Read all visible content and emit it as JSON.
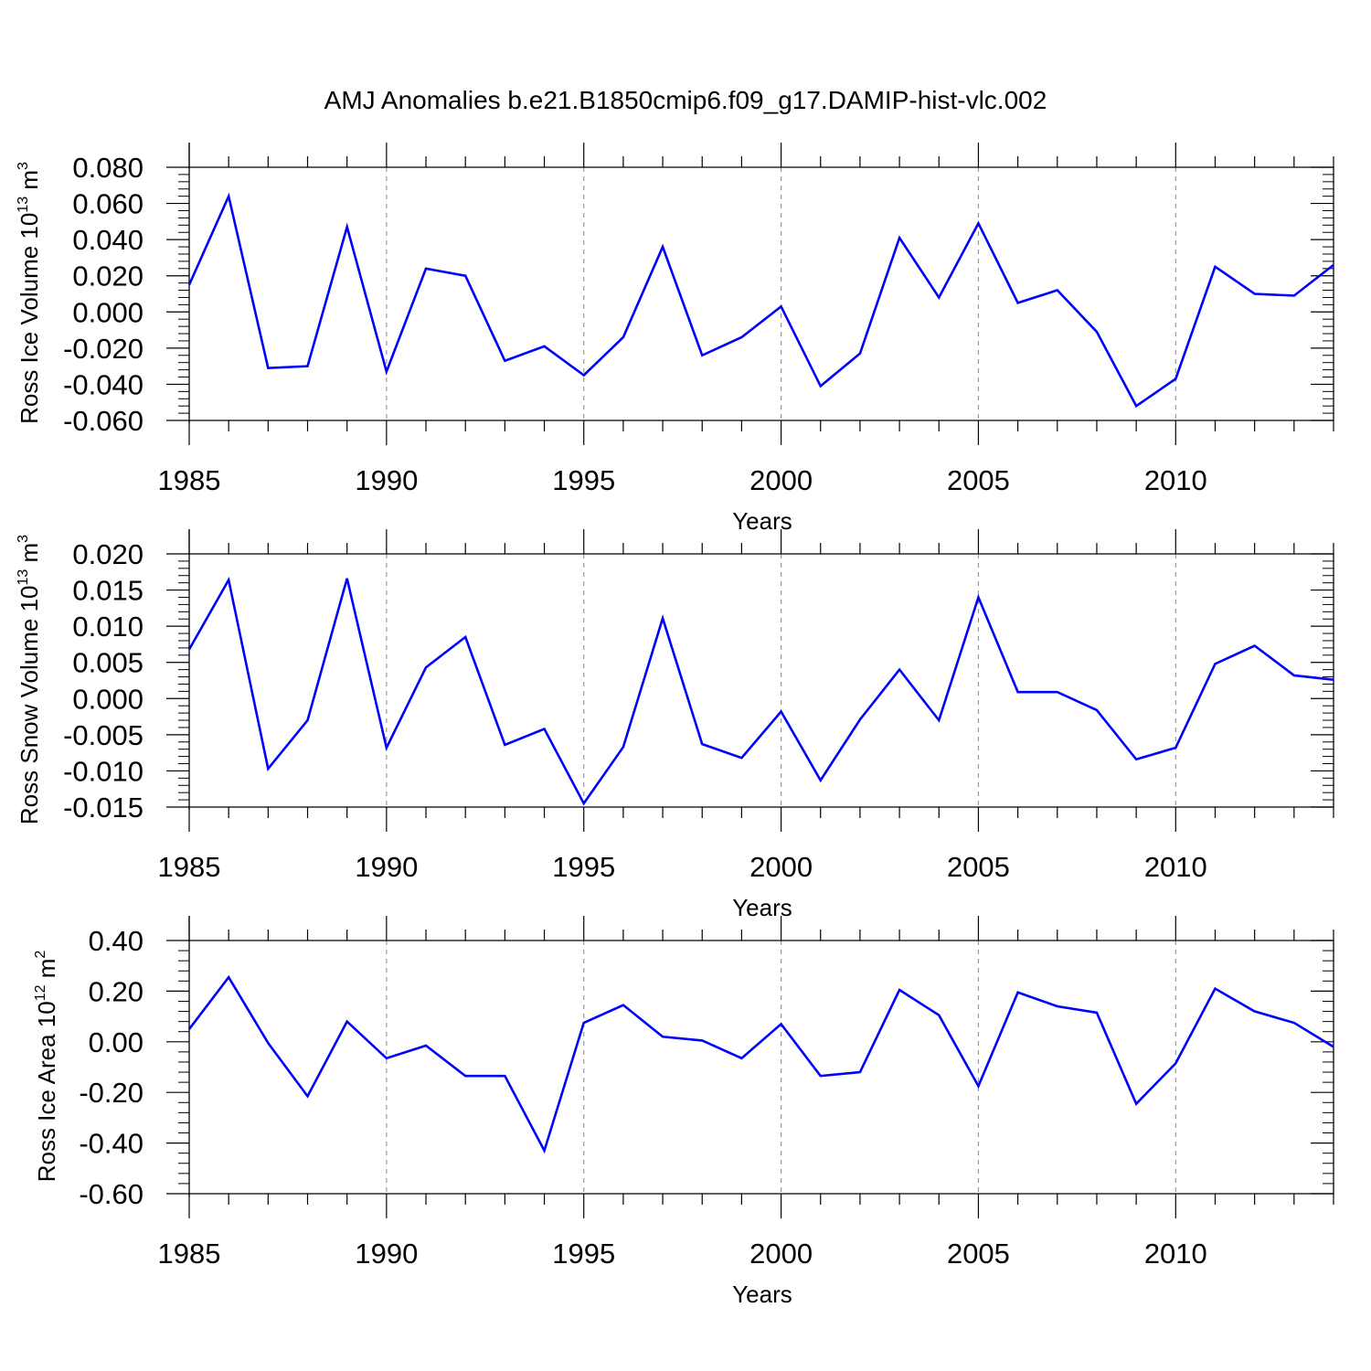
{
  "figure_title": "AMJ Anomalies b.e21.B1850cmip6.f09_g17.DAMIP-hist-vlc.002",
  "colors": {
    "line": "#0000ff",
    "axes": "#000000",
    "grid": "#999999",
    "background": "#ffffff"
  },
  "chart_data": [
    {
      "type": "line",
      "ylabel": "Ross Ice Volume 10",
      "ylabel_exp": "13",
      "ylabel_unit": "m",
      "ylabel_unit_exp": "3",
      "xlabel": "Years",
      "xlim": [
        1985,
        2014
      ],
      "ylim": [
        -0.06,
        0.08
      ],
      "xticks": [
        1985,
        1990,
        1995,
        2000,
        2005,
        2010
      ],
      "xtick_labels": [
        "1985",
        "1990",
        "1995",
        "2000",
        "2005",
        "2010"
      ],
      "yticks": [
        -0.06,
        -0.04,
        -0.02,
        0.0,
        0.02,
        0.04,
        0.06,
        0.08
      ],
      "ytick_labels": [
        "-0.060",
        "-0.040",
        "-0.020",
        "0.000",
        "0.020",
        "0.040",
        "0.060",
        "0.080"
      ],
      "grid": "vertical dashed at 1990, 1995, 2000, 2005, 2010",
      "x": [
        1985,
        1986,
        1987,
        1988,
        1989,
        1990,
        1991,
        1992,
        1993,
        1994,
        1995,
        1996,
        1997,
        1998,
        1999,
        2000,
        2001,
        2002,
        2003,
        2004,
        2005,
        2006,
        2007,
        2008,
        2009,
        2010,
        2011,
        2012,
        2013,
        2014
      ],
      "values": [
        0.015,
        0.064,
        -0.031,
        -0.03,
        0.047,
        -0.033,
        0.024,
        0.02,
        -0.027,
        -0.019,
        -0.035,
        -0.014,
        0.036,
        -0.024,
        -0.014,
        0.003,
        -0.041,
        -0.023,
        0.041,
        0.008,
        0.049,
        0.005,
        0.012,
        -0.011,
        -0.052,
        -0.037,
        0.025,
        0.01,
        0.009,
        0.026
      ]
    },
    {
      "type": "line",
      "ylabel": "Ross Snow Volume 10",
      "ylabel_exp": "13",
      "ylabel_unit": "m",
      "ylabel_unit_exp": "3",
      "xlabel": "Years",
      "xlim": [
        1985,
        2014
      ],
      "ylim": [
        -0.015,
        0.02
      ],
      "xticks": [
        1985,
        1990,
        1995,
        2000,
        2005,
        2010
      ],
      "xtick_labels": [
        "1985",
        "1990",
        "1995",
        "2000",
        "2005",
        "2010"
      ],
      "yticks": [
        -0.015,
        -0.01,
        -0.005,
        0.0,
        0.005,
        0.01,
        0.015,
        0.02
      ],
      "ytick_labels": [
        "-0.015",
        "-0.010",
        "-0.005",
        "0.000",
        "0.005",
        "0.010",
        "0.015",
        "0.020"
      ],
      "grid": "vertical dashed at 1990, 1995, 2000, 2005, 2010",
      "x": [
        1985,
        1986,
        1987,
        1988,
        1989,
        1990,
        1991,
        1992,
        1993,
        1994,
        1995,
        1996,
        1997,
        1998,
        1999,
        2000,
        2001,
        2002,
        2003,
        2004,
        2005,
        2006,
        2007,
        2008,
        2009,
        2010,
        2011,
        2012,
        2013,
        2014
      ],
      "values": [
        0.0068,
        0.0164,
        -0.0097,
        -0.003,
        0.0166,
        -0.0068,
        0.0043,
        0.0085,
        -0.0064,
        -0.0042,
        -0.0145,
        -0.0067,
        0.0111,
        -0.0063,
        -0.0082,
        -0.0018,
        -0.0113,
        -0.0029,
        0.004,
        -0.003,
        0.014,
        0.0009,
        0.0009,
        -0.0016,
        -0.0084,
        -0.0068,
        0.0048,
        0.0073,
        0.0032,
        0.0026
      ]
    },
    {
      "type": "line",
      "ylabel": "Ross Ice Area 10",
      "ylabel_exp": "12",
      "ylabel_unit": "m",
      "ylabel_unit_exp": "2",
      "xlabel": "Years",
      "xlim": [
        1985,
        2014
      ],
      "ylim": [
        -0.6,
        0.4
      ],
      "xticks": [
        1985,
        1990,
        1995,
        2000,
        2005,
        2010
      ],
      "xtick_labels": [
        "1985",
        "1990",
        "1995",
        "2000",
        "2005",
        "2010"
      ],
      "yticks": [
        -0.6,
        -0.4,
        -0.2,
        0.0,
        0.2,
        0.4
      ],
      "ytick_labels": [
        "-0.60",
        "-0.40",
        "-0.20",
        "0.00",
        "0.20",
        "0.40"
      ],
      "grid": "vertical dashed at 1990, 1995, 2000, 2005, 2010",
      "x": [
        1985,
        1986,
        1987,
        1988,
        1989,
        1990,
        1991,
        1992,
        1993,
        1994,
        1995,
        1996,
        1997,
        1998,
        1999,
        2000,
        2001,
        2002,
        2003,
        2004,
        2005,
        2006,
        2007,
        2008,
        2009,
        2010,
        2011,
        2012,
        2013,
        2014
      ],
      "values": [
        0.05,
        0.255,
        -0.005,
        -0.215,
        0.08,
        -0.065,
        -0.015,
        -0.135,
        -0.135,
        -0.43,
        0.075,
        0.145,
        0.02,
        0.005,
        -0.065,
        0.07,
        -0.135,
        -0.12,
        0.205,
        0.105,
        -0.175,
        0.195,
        0.14,
        0.115,
        -0.245,
        -0.085,
        0.21,
        0.12,
        0.075,
        -0.02
      ]
    }
  ]
}
